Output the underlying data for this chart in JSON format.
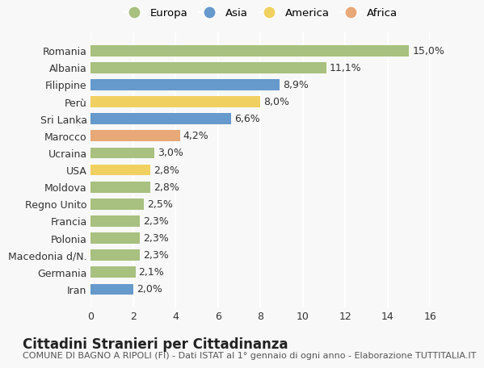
{
  "countries": [
    "Romania",
    "Albania",
    "Filippine",
    "Perù",
    "Sri Lanka",
    "Marocco",
    "Ucraina",
    "USA",
    "Moldova",
    "Regno Unito",
    "Francia",
    "Polonia",
    "Macedonia d/N.",
    "Germania",
    "Iran"
  ],
  "values": [
    15.0,
    11.1,
    8.9,
    8.0,
    6.6,
    4.2,
    3.0,
    2.8,
    2.8,
    2.5,
    2.3,
    2.3,
    2.3,
    2.1,
    2.0
  ],
  "labels": [
    "15,0%",
    "11,1%",
    "8,9%",
    "8,0%",
    "6,6%",
    "4,2%",
    "3,0%",
    "2,8%",
    "2,8%",
    "2,5%",
    "2,3%",
    "2,3%",
    "2,3%",
    "2,1%",
    "2,0%"
  ],
  "continents": [
    "Europa",
    "Europa",
    "Asia",
    "America",
    "Asia",
    "Africa",
    "Europa",
    "America",
    "Europa",
    "Europa",
    "Europa",
    "Europa",
    "Europa",
    "Europa",
    "Asia"
  ],
  "colors": {
    "Europa": "#a8c080",
    "Asia": "#6699cc",
    "America": "#f0d060",
    "Africa": "#e8a878"
  },
  "legend_order": [
    "Europa",
    "Asia",
    "America",
    "Africa"
  ],
  "xlim": [
    0,
    16
  ],
  "xticks": [
    0,
    2,
    4,
    6,
    8,
    10,
    12,
    14,
    16
  ],
  "title": "Cittadini Stranieri per Cittadinanza",
  "subtitle": "COMUNE DI BAGNO A RIPOLI (FI) - Dati ISTAT al 1° gennaio di ogni anno - Elaborazione TUTTITALIA.IT",
  "bg_color": "#f8f8f8",
  "grid_color": "#ffffff",
  "bar_height": 0.65,
  "label_fontsize": 9,
  "tick_fontsize": 9,
  "title_fontsize": 12,
  "subtitle_fontsize": 8
}
